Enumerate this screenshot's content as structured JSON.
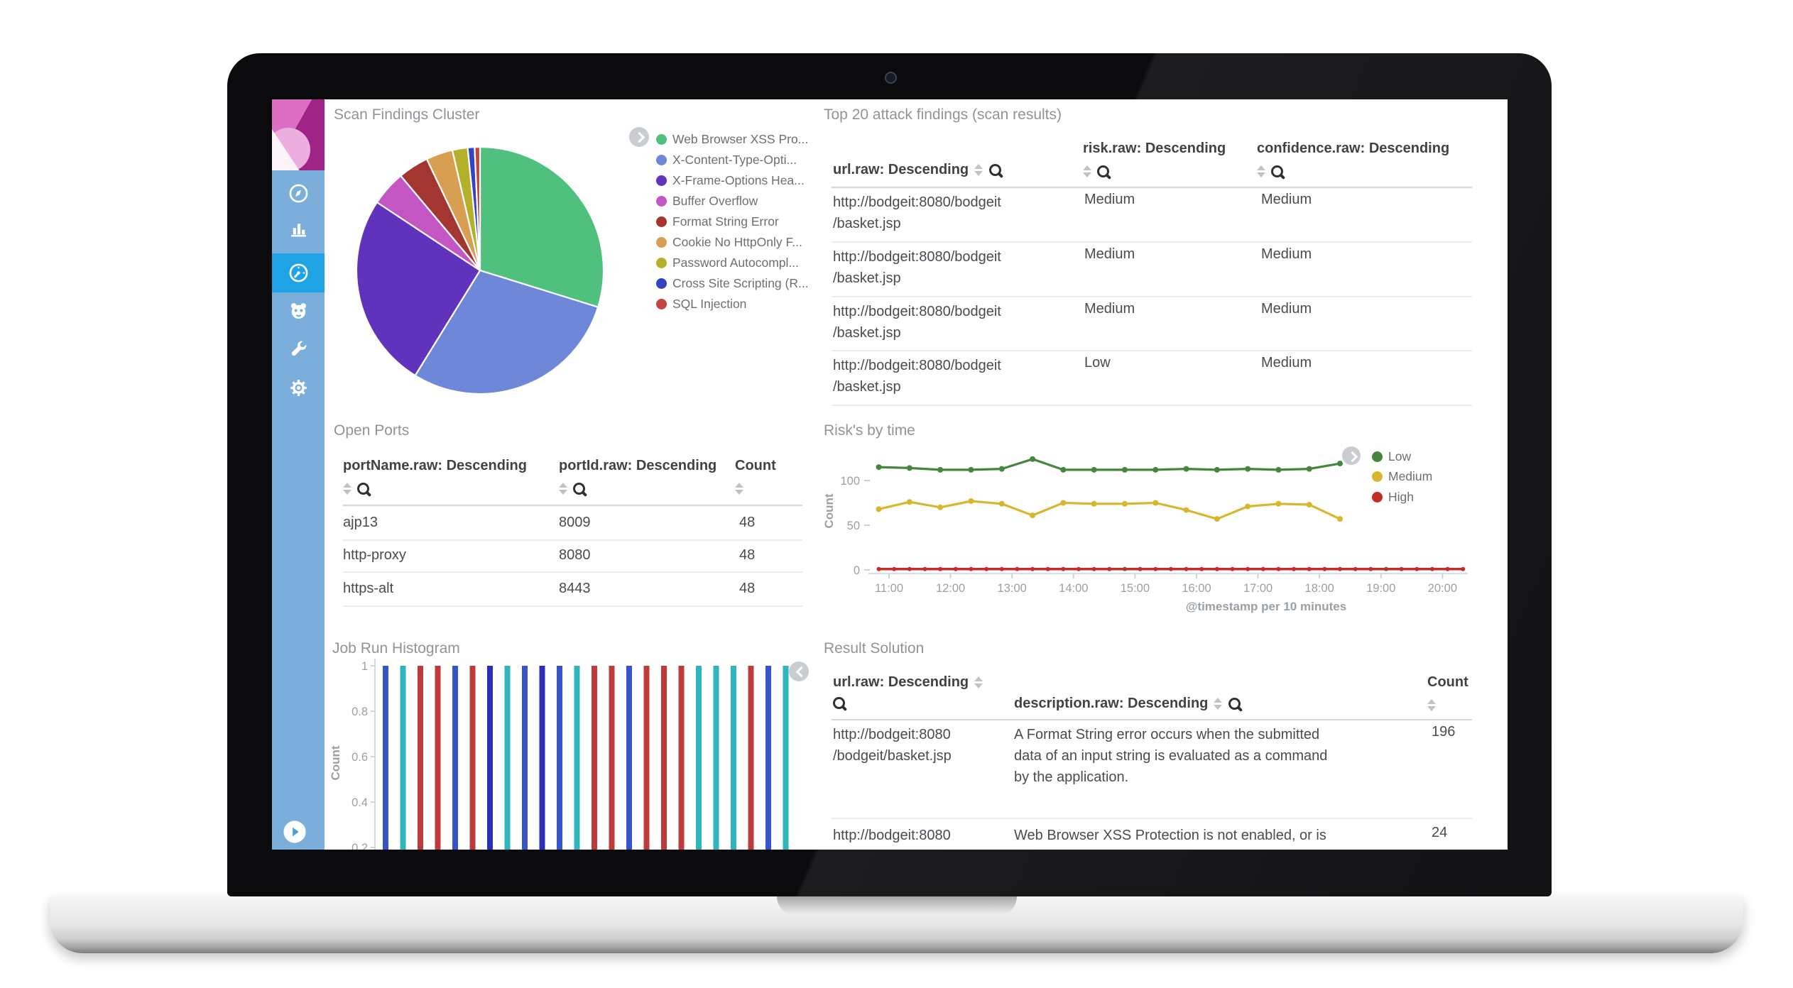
{
  "sidebar": {
    "items": [
      {
        "id": "discover",
        "icon": "compass-icon"
      },
      {
        "id": "visualize",
        "icon": "bar-chart-icon"
      },
      {
        "id": "dashboard",
        "icon": "gauge-icon",
        "active": true
      },
      {
        "id": "timelion",
        "icon": "owl-face-icon"
      },
      {
        "id": "dev-tools",
        "icon": "wrench-icon"
      },
      {
        "id": "management",
        "icon": "gear-icon"
      }
    ]
  },
  "panels": {
    "scan_findings": {
      "title": "Scan Findings Cluster"
    },
    "top20": {
      "title": "Top 20 attack findings (scan results)",
      "columns": [
        "url.raw: Descending",
        "risk.raw: Descending",
        "confidence.raw: Descending"
      ],
      "rows": [
        {
          "url_lines": [
            "http://bodgeit:8080/bodgeit",
            "/basket.jsp"
          ],
          "risk": "Medium",
          "confidence": "Medium"
        },
        {
          "url_lines": [
            "http://bodgeit:8080/bodgeit",
            "/basket.jsp"
          ],
          "risk": "Medium",
          "confidence": "Medium"
        },
        {
          "url_lines": [
            "http://bodgeit:8080/bodgeit",
            "/basket.jsp"
          ],
          "risk": "Medium",
          "confidence": "Medium"
        },
        {
          "url_lines": [
            "http://bodgeit:8080/bodgeit",
            "/basket.jsp"
          ],
          "risk": "Low",
          "confidence": "Medium"
        }
      ]
    },
    "open_ports": {
      "title": "Open Ports",
      "columns": [
        "portName.raw: Descending",
        "portId.raw: Descending",
        "Count"
      ],
      "rows": [
        [
          "ajp13",
          "8009",
          "48"
        ],
        [
          "http-proxy",
          "8080",
          "48"
        ],
        [
          "https-alt",
          "8443",
          "48"
        ]
      ]
    },
    "risks_by_time": {
      "title": "Risk's by time"
    },
    "job_run": {
      "title": "Job Run Histogram"
    },
    "result_solution": {
      "title": "Result Solution",
      "columns": [
        "url.raw: Descending",
        "description.raw: Descending",
        "Count"
      ],
      "rows": [
        {
          "url_lines": [
            "http://bodgeit:8080",
            "/bodgeit/basket.jsp"
          ],
          "desc_lines": [
            "A Format String error occurs when the submitted",
            "data of an input string is evaluated as a command",
            "by the application."
          ],
          "count": "196"
        },
        {
          "url_lines": [
            "http://bodgeit:8080"
          ],
          "desc_lines": [
            "Web Browser XSS Protection is not enabled, or is"
          ],
          "count": "24"
        }
      ]
    }
  },
  "chart_data": [
    {
      "type": "pie",
      "title": "Scan Findings Cluster",
      "labels": [
        "Web Browser XSS Pro...",
        "X-Content-Type-Opti...",
        "X-Frame-Options Hea...",
        "Buffer Overflow",
        "Format String Error",
        "Cookie No HttpOnly F...",
        "Password Autocompl...",
        "Cross Site Scripting (R...",
        "SQL Injection"
      ],
      "values": [
        29.8,
        29.0,
        25.5,
        4.6,
        4.0,
        3.5,
        2.0,
        0.9,
        0.7
      ],
      "colors": [
        "#4fc07e",
        "#6e87d9",
        "#6133bd",
        "#c356c3",
        "#a33631",
        "#d89e52",
        "#b4b02a",
        "#3343c1",
        "#c14641"
      ],
      "legend_position": "right"
    },
    {
      "type": "line",
      "title": "Risk's by time",
      "xlabel": "@timestamp per 10 minutes",
      "ylabel": "Count",
      "ylim": [
        0,
        145
      ],
      "y_ticks": [
        0,
        50,
        100
      ],
      "x_ticks": [
        "11:00",
        "12:00",
        "13:00",
        "14:00",
        "15:00",
        "16:00",
        "17:00",
        "18:00",
        "19:00",
        "20:00"
      ],
      "x_points": [
        "10:50",
        "11:20",
        "11:50",
        "12:20",
        "12:50",
        "13:20",
        "13:50",
        "14:20",
        "14:50",
        "15:20",
        "15:50",
        "16:20",
        "16:50",
        "17:20",
        "17:50",
        "18:20"
      ],
      "series": [
        {
          "name": "Low",
          "color": "#44873c",
          "values": [
            115,
            114,
            112,
            112,
            113,
            124,
            112,
            112,
            112,
            112,
            113,
            112,
            113,
            112,
            113,
            119
          ]
        },
        {
          "name": "Medium",
          "color": "#d8b62e",
          "values": [
            68,
            76,
            70,
            77,
            74,
            61,
            75,
            74,
            74,
            75,
            67,
            57,
            71,
            74,
            73,
            57
          ]
        },
        {
          "name": "High",
          "color": "#c22d24",
          "constant_value": 1,
          "x_start": "10:50",
          "x_end": "20:20"
        }
      ],
      "legend_position": "top-right",
      "grid": false
    },
    {
      "type": "bar",
      "title": "Job Run Histogram",
      "ylabel": "Count",
      "y_ticks": [
        1,
        0.8,
        0.6,
        0.4,
        0.2
      ],
      "values": [
        1,
        1,
        1,
        1,
        1,
        1,
        1,
        1,
        1,
        1,
        1,
        1,
        1,
        1,
        1,
        1,
        1,
        1,
        1,
        1,
        1,
        1,
        1,
        1
      ],
      "bar_colors": [
        "#3555c8",
        "#30b5bc",
        "#bf3b3b",
        "#bf3b3b",
        "#3555c8",
        "#bf3b3b",
        "#2b2fb5",
        "#30b5bc",
        "#3555c8",
        "#2b2fb5",
        "#3555c8",
        "#30b5bc",
        "#bf3b3b",
        "#bf3b3b",
        "#3555c8",
        "#bf3b3b",
        "#bf3b3b",
        "#bf3b3b",
        "#30b5bc",
        "#30b5bc",
        "#30b5bc",
        "#bf3b3b",
        "#3555c8",
        "#30b5bc"
      ]
    }
  ]
}
